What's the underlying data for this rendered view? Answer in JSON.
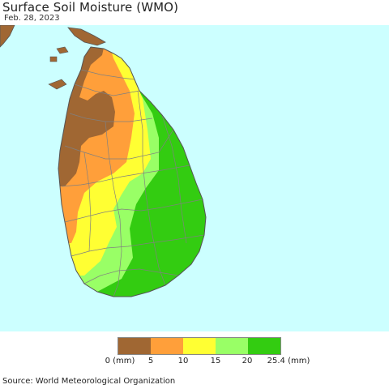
{
  "header": {
    "title": "Surface Soil Moisture (WMO)",
    "date": "Feb. 28, 2023"
  },
  "map": {
    "region": "Sri Lanka",
    "ocean_color": "#ccffff",
    "boundary_color": "#808080"
  },
  "legend": {
    "colors": [
      "#a06733",
      "#ff9f3a",
      "#ffff33",
      "#99ff66",
      "#33cc11"
    ],
    "labels": [
      "0 (mm)",
      "5",
      "10",
      "15",
      "20",
      "25.4 (mm)"
    ]
  },
  "footer": {
    "source": "Source: World Meteorological Organization"
  }
}
